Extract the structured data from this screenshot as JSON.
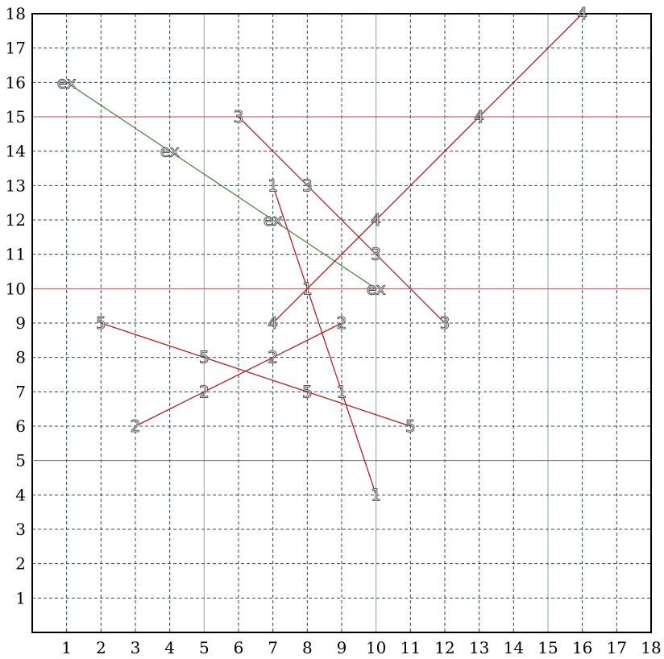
{
  "chart_data": {
    "type": "line",
    "title": "",
    "xlabel": "",
    "ylabel": "",
    "xlim": [
      0,
      18
    ],
    "ylim": [
      0,
      18
    ],
    "x_ticks": [
      "1",
      "2",
      "3",
      "4",
      "5",
      "6",
      "7",
      "8",
      "9",
      "10",
      "11",
      "12",
      "13",
      "14",
      "15",
      "16",
      "17",
      "18"
    ],
    "y_ticks": [
      "1",
      "2",
      "3",
      "4",
      "5",
      "6",
      "7",
      "8",
      "9",
      "10",
      "11",
      "12",
      "13",
      "14",
      "15",
      "16",
      "17",
      "18"
    ],
    "grid": true,
    "highlight_y_lines": [
      5,
      10,
      15
    ],
    "highlight_x_lines": [
      5,
      10,
      15
    ],
    "highlight_y_color": "#b05050",
    "highlight_x_color": "#8ea0b8",
    "series": [
      {
        "label": "ex",
        "color": "#4a8a3a",
        "points": [
          [
            1,
            16
          ],
          [
            4,
            14
          ],
          [
            7,
            12
          ],
          [
            10,
            10
          ]
        ]
      },
      {
        "label": "1",
        "color": "#b02020",
        "points": [
          [
            7,
            13
          ],
          [
            8,
            10
          ],
          [
            9,
            7
          ],
          [
            10,
            4
          ]
        ]
      },
      {
        "label": "2",
        "color": "#b02020",
        "points": [
          [
            3,
            6
          ],
          [
            5,
            7
          ],
          [
            7,
            8
          ],
          [
            9,
            9
          ]
        ]
      },
      {
        "label": "3",
        "color": "#b02020",
        "points": [
          [
            6,
            15
          ],
          [
            8,
            13
          ],
          [
            10,
            11
          ],
          [
            12,
            9
          ]
        ]
      },
      {
        "label": "4",
        "color": "#b02020",
        "points": [
          [
            7,
            9
          ],
          [
            10,
            12
          ],
          [
            13,
            15
          ],
          [
            16,
            18
          ]
        ]
      },
      {
        "label": "5",
        "color": "#b02020",
        "points": [
          [
            2,
            9
          ],
          [
            5,
            8
          ],
          [
            8,
            7
          ],
          [
            11,
            6
          ]
        ]
      }
    ]
  }
}
